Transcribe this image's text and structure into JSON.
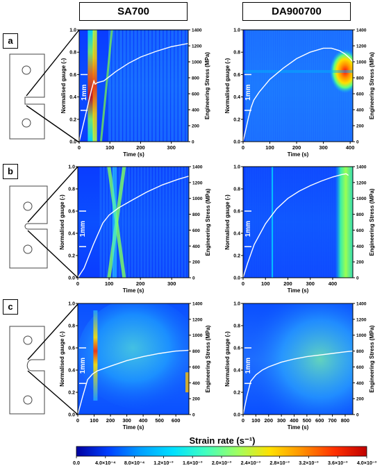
{
  "headers": {
    "left": "SA700",
    "right": "DA900700"
  },
  "row_labels": [
    "a",
    "b",
    "c"
  ],
  "axis_text": {
    "ylabel_left": "Normalised gauge (-)",
    "ylabel_right": "Engineering Stress (MPa)",
    "xlabel": "Time (s)",
    "scale_bar": "1mm"
  },
  "colorbar": {
    "title": "Strain rate (s⁻¹)",
    "ticks": [
      "0.0",
      "4.0×10⁻⁴",
      "8.0×10⁻⁴",
      "1.2×10⁻³",
      "1.6×10⁻³",
      "2.0×10⁻³",
      "2.4×10⁻³",
      "2.8×10⁻³",
      "3.2×10⁻³",
      "3.6×10⁻³",
      "4.0×10⁻³"
    ],
    "range": [
      0,
      0.004
    ]
  },
  "chart_data": [
    {
      "type": "heatmap",
      "row": "a",
      "material": "SA700",
      "xlabel": "Time (s)",
      "ylabel": "Normalised gauge (-)",
      "y2label": "Engineering Stress (MPa)",
      "xlim": [
        0,
        355
      ],
      "ylim": [
        0,
        1
      ],
      "y2lim": [
        0,
        1400
      ],
      "xticks": [
        0,
        100,
        200,
        300
      ],
      "yticks": [
        0.0,
        0.2,
        0.4,
        0.6,
        0.8,
        1.0
      ],
      "y2ticks": [
        0,
        200,
        400,
        600,
        800,
        1000,
        1200,
        1400
      ],
      "series": [
        {
          "x": [
            0,
            20,
            40,
            48,
            52,
            60,
            80,
            120,
            160,
            200,
            250,
            300,
            355
          ],
          "y": [
            0,
            320,
            650,
            760,
            720,
            740,
            760,
            880,
            980,
            1060,
            1130,
            1190,
            1230
          ]
        }
      ]
    },
    {
      "type": "heatmap",
      "row": "a",
      "material": "DA900700",
      "xlabel": "Time (s)",
      "ylabel": "Normalised gauge (-)",
      "y2label": "Engineering Stress (MPa)",
      "xlim": [
        0,
        410
      ],
      "ylim": [
        0,
        1
      ],
      "y2lim": [
        0,
        1400
      ],
      "xticks": [
        0,
        100,
        200,
        300,
        400
      ],
      "yticks": [
        0.0,
        0.2,
        0.4,
        0.6,
        0.8,
        1.0
      ],
      "y2ticks": [
        0,
        200,
        400,
        600,
        800,
        1000,
        1200,
        1400
      ],
      "series": [
        {
          "x": [
            0,
            20,
            30,
            40,
            60,
            100,
            150,
            200,
            250,
            300,
            330,
            360,
            380,
            400,
            410
          ],
          "y": [
            0,
            300,
            430,
            520,
            620,
            780,
            920,
            1040,
            1120,
            1170,
            1170,
            1140,
            1100,
            1040,
            1000
          ]
        }
      ]
    },
    {
      "type": "heatmap",
      "row": "b",
      "material": "SA700",
      "xlabel": "Time (s)",
      "ylabel": "Normalised gauge (-)",
      "y2label": "Engineering Stress (MPa)",
      "xlim": [
        0,
        355
      ],
      "ylim": [
        0,
        1
      ],
      "y2lim": [
        0,
        1400
      ],
      "xticks": [
        0,
        100,
        200,
        300
      ],
      "yticks": [
        0.0,
        0.2,
        0.4,
        0.6,
        0.8,
        1.0
      ],
      "y2ticks": [
        0,
        200,
        400,
        600,
        800,
        1000,
        1200,
        1400
      ],
      "series": [
        {
          "x": [
            0,
            20,
            50,
            80,
            100,
            110,
            130,
            170,
            220,
            270,
            320,
            355
          ],
          "y": [
            0,
            120,
            420,
            690,
            790,
            820,
            880,
            970,
            1080,
            1170,
            1240,
            1280
          ]
        }
      ]
    },
    {
      "type": "heatmap",
      "row": "b",
      "material": "DA900700",
      "xlabel": "Time (s)",
      "ylabel": "Normalised gauge (-)",
      "y2label": "Engineering Stress (MPa)",
      "xlim": [
        0,
        490
      ],
      "ylim": [
        0,
        1
      ],
      "y2lim": [
        0,
        1400
      ],
      "xticks": [
        0,
        100,
        200,
        300,
        400
      ],
      "yticks": [
        0.0,
        0.2,
        0.4,
        0.6,
        0.8,
        1.0
      ],
      "y2ticks": [
        0,
        200,
        400,
        600,
        800,
        1000,
        1200,
        1400
      ],
      "series": [
        {
          "x": [
            0,
            20,
            50,
            100,
            150,
            200,
            250,
            300,
            350,
            400,
            440,
            460,
            470
          ],
          "y": [
            0,
            180,
            420,
            680,
            870,
            1000,
            1090,
            1160,
            1220,
            1270,
            1300,
            1310,
            1290
          ]
        }
      ]
    },
    {
      "type": "heatmap",
      "row": "c",
      "material": "SA700",
      "xlabel": "Time (s)",
      "ylabel": "Normalised gauge (-)",
      "y2label": "Engineering Stress (MPa)",
      "xlim": [
        0,
        680
      ],
      "ylim": [
        0,
        1
      ],
      "y2lim": [
        0,
        1400
      ],
      "xticks": [
        0,
        100,
        200,
        300,
        400,
        500,
        600
      ],
      "yticks": [
        0.0,
        0.2,
        0.4,
        0.6,
        0.8,
        1.0
      ],
      "y2ticks": [
        0,
        200,
        400,
        600,
        800,
        1000,
        1200,
        1400
      ],
      "series": [
        {
          "x": [
            0,
            30,
            60,
            90,
            120,
            200,
            300,
            400,
            500,
            600,
            680
          ],
          "y": [
            0,
            230,
            440,
            510,
            550,
            610,
            680,
            730,
            770,
            800,
            810
          ]
        }
      ]
    },
    {
      "type": "heatmap",
      "row": "c",
      "material": "DA900700",
      "xlabel": "Time (s)",
      "ylabel": "Normalised gauge (-)",
      "y2label": "Engineering Stress (MPa)",
      "xlim": [
        0,
        860
      ],
      "ylim": [
        0,
        1
      ],
      "y2lim": [
        0,
        1400
      ],
      "xticks": [
        0,
        100,
        200,
        300,
        400,
        500,
        600,
        700,
        800
      ],
      "yticks": [
        0.0,
        0.2,
        0.4,
        0.6,
        0.8,
        1.0
      ],
      "y2ticks": [
        0,
        200,
        400,
        600,
        800,
        1000,
        1200,
        1400
      ],
      "series": [
        {
          "x": [
            0,
            30,
            60,
            100,
            150,
            200,
            300,
            400,
            500,
            600,
            700,
            800,
            860
          ],
          "y": [
            0,
            230,
            420,
            500,
            560,
            600,
            660,
            700,
            730,
            750,
            770,
            790,
            800
          ]
        }
      ]
    }
  ]
}
